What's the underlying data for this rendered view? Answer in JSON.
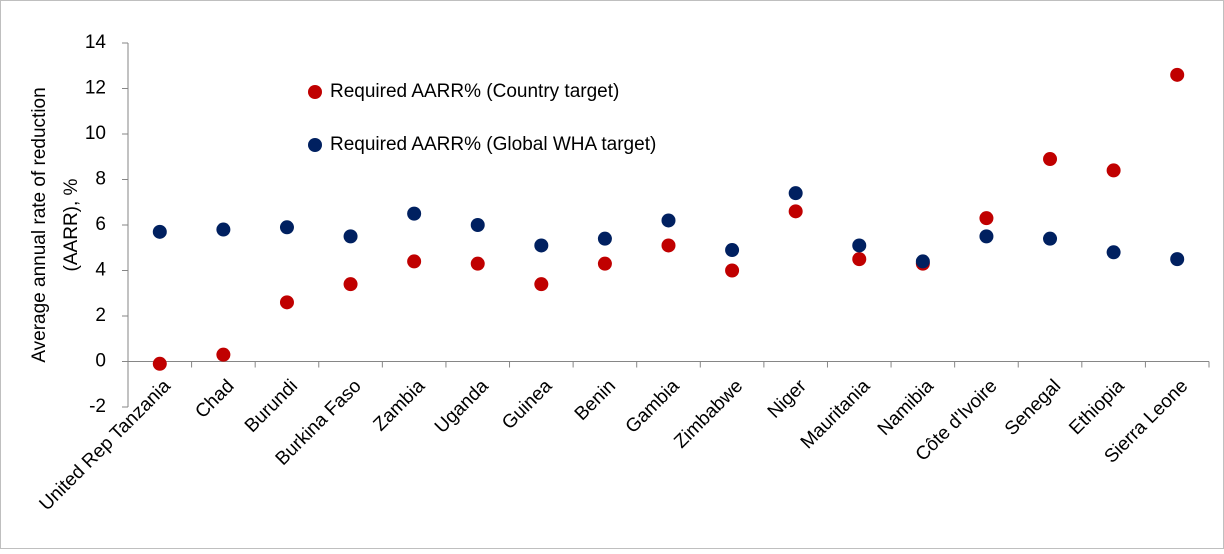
{
  "chart_data": {
    "type": "scatter",
    "y_label": [
      "Average annual rate of reduction",
      "(AARR), %"
    ],
    "categories": [
      "United Rep Tanzania",
      "Chad",
      "Burundi",
      "Burkina Faso",
      "Zambia",
      "Uganda",
      "Guinea",
      "Benin",
      "Gambia",
      "Zimbabwe",
      "Niger",
      "Mauritania",
      "Namibia",
      "Côte d'Ivoire",
      "Senegal",
      "Ethiopia",
      "Sierra Leone"
    ],
    "series": [
      {
        "name": "Required AARR% (Country target)",
        "color": "#c00000",
        "values": [
          -0.1,
          0.3,
          2.6,
          3.4,
          4.4,
          4.3,
          3.4,
          4.3,
          5.1,
          4.0,
          6.6,
          4.5,
          4.3,
          6.3,
          8.9,
          8.4,
          12.6
        ]
      },
      {
        "name": "Required AARR% (Global WHA target)",
        "color": "#002060",
        "values": [
          5.7,
          5.8,
          5.9,
          5.5,
          6.5,
          6.0,
          5.1,
          5.4,
          6.2,
          4.9,
          7.4,
          5.1,
          4.4,
          5.5,
          5.4,
          4.8,
          4.5
        ]
      }
    ],
    "ylim": [
      -2,
      14
    ],
    "yticks": [
      -2,
      0,
      2,
      4,
      6,
      8,
      10,
      12,
      14
    ],
    "legend": "upper left"
  }
}
